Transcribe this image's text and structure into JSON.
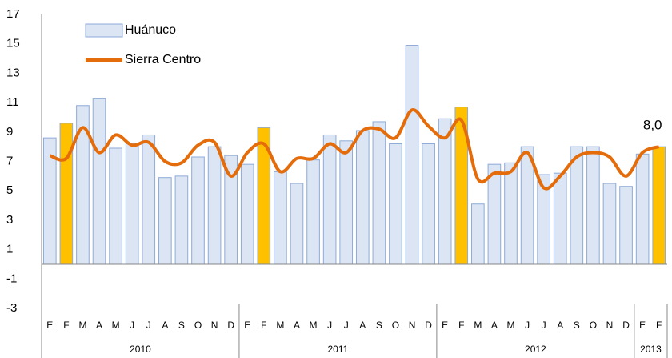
{
  "chart_data": {
    "type": "bar_line",
    "categories": [
      "E",
      "F",
      "M",
      "A",
      "M",
      "J",
      "J",
      "A",
      "S",
      "O",
      "N",
      "D",
      "E",
      "F",
      "M",
      "A",
      "M",
      "J",
      "J",
      "A",
      "S",
      "O",
      "N",
      "D",
      "E",
      "F",
      "M",
      "A",
      "M",
      "J",
      "J",
      "A",
      "S",
      "O",
      "N",
      "D",
      "E",
      "F"
    ],
    "groups": [
      {
        "label": "2010",
        "span": 12
      },
      {
        "label": "2011",
        "span": 12
      },
      {
        "label": "2012",
        "span": 12
      },
      {
        "label": "2013",
        "span": 2
      }
    ],
    "series": [
      {
        "name": "Huánuco",
        "type": "bar",
        "color": "#dbe5f3",
        "edge_color": "#8eaad8",
        "colors": [
          "#dbe5f3",
          "#ffc000",
          "#dbe5f3",
          "#dbe5f3",
          "#dbe5f3",
          "#dbe5f3",
          "#dbe5f3",
          "#dbe5f3",
          "#dbe5f3",
          "#dbe5f3",
          "#dbe5f3",
          "#dbe5f3",
          "#dbe5f3",
          "#ffc000",
          "#dbe5f3",
          "#dbe5f3",
          "#dbe5f3",
          "#dbe5f3",
          "#dbe5f3",
          "#dbe5f3",
          "#dbe5f3",
          "#dbe5f3",
          "#dbe5f3",
          "#dbe5f3",
          "#dbe5f3",
          "#ffc000",
          "#dbe5f3",
          "#dbe5f3",
          "#dbe5f3",
          "#dbe5f3",
          "#dbe5f3",
          "#dbe5f3",
          "#dbe5f3",
          "#dbe5f3",
          "#dbe5f3",
          "#dbe5f3",
          "#dbe5f3",
          "#ffc000"
        ],
        "values": [
          8.6,
          9.6,
          10.8,
          11.3,
          7.9,
          8.2,
          8.8,
          5.9,
          6.0,
          7.3,
          8.0,
          7.4,
          6.8,
          9.3,
          6.3,
          5.5,
          7.1,
          8.8,
          8.4,
          9.1,
          9.7,
          8.2,
          14.9,
          8.2,
          9.9,
          10.7,
          4.1,
          6.8,
          6.9,
          8.0,
          6.1,
          6.2,
          8.0,
          8.0,
          5.5,
          5.3,
          7.5,
          8.0
        ],
        "value_labels": [
          null,
          null,
          null,
          null,
          null,
          null,
          null,
          null,
          null,
          null,
          null,
          null,
          null,
          null,
          null,
          null,
          null,
          null,
          null,
          null,
          null,
          null,
          null,
          null,
          null,
          null,
          null,
          null,
          null,
          null,
          null,
          null,
          null,
          null,
          null,
          null,
          null,
          "8,0"
        ]
      },
      {
        "name": "Sierra Centro",
        "type": "line",
        "color": "#e46c0a",
        "values": [
          7.4,
          7.2,
          9.3,
          7.6,
          8.8,
          8.1,
          8.3,
          7.0,
          6.9,
          8.1,
          8.3,
          6.0,
          7.6,
          8.2,
          6.3,
          7.2,
          7.2,
          8.2,
          7.6,
          9.1,
          9.2,
          8.6,
          10.5,
          9.4,
          8.6,
          9.8,
          5.8,
          6.2,
          6.3,
          7.6,
          5.2,
          6.0,
          7.3,
          7.6,
          7.3,
          6.0,
          7.6,
          8.0
        ]
      }
    ],
    "ylim": [
      -3,
      17
    ],
    "yticks": [
      -3,
      -1,
      1,
      3,
      5,
      7,
      9,
      11,
      13,
      15,
      17
    ],
    "legend": "top-left",
    "grid": false
  }
}
